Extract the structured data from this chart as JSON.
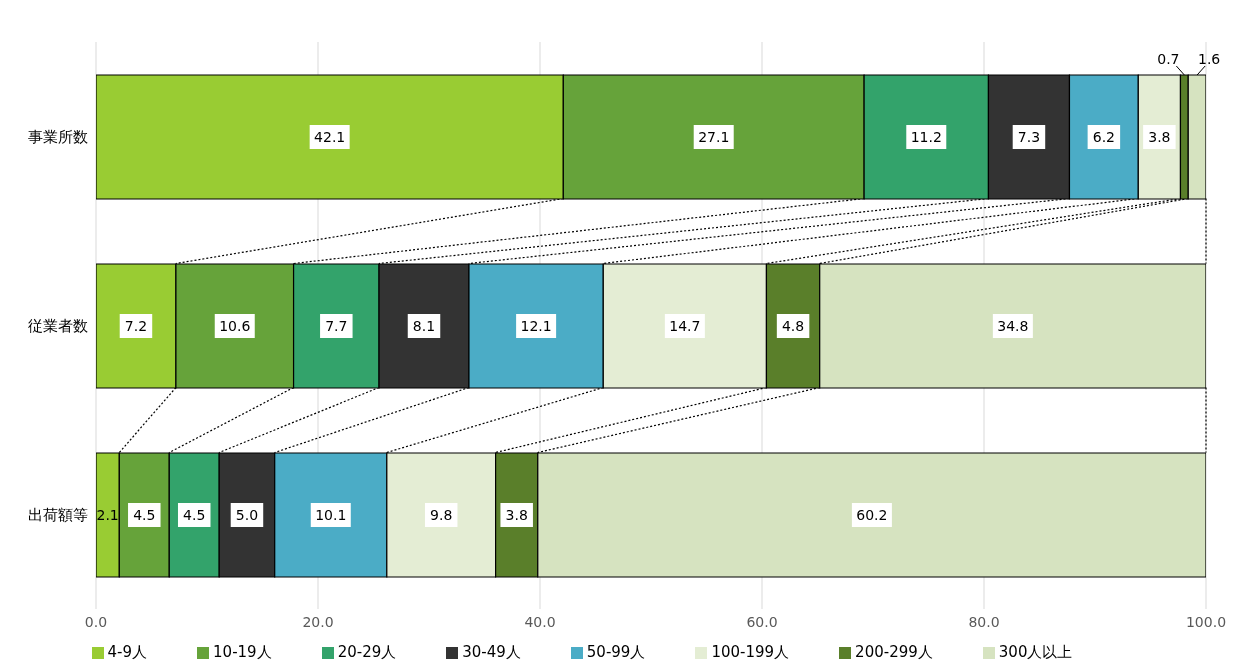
{
  "chart_data": {
    "type": "bar",
    "orientation": "horizontal",
    "stacked": true,
    "categories": [
      "事業所数",
      "従業者数",
      "出荷額等"
    ],
    "series": [
      {
        "name": "4-9人",
        "color": "#99cc33",
        "values": [
          42.1,
          7.2,
          2.1
        ],
        "value_labels": [
          "42.1",
          "7.2",
          "2.1"
        ]
      },
      {
        "name": "10-19人",
        "color": "#66a33a",
        "values": [
          27.1,
          10.6,
          4.5
        ],
        "value_labels": [
          "27.1",
          "10.6",
          "4.5"
        ]
      },
      {
        "name": "20-29人",
        "color": "#33a36b",
        "values": [
          11.2,
          7.7,
          4.5
        ],
        "value_labels": [
          "11.2",
          "7.7",
          "4.5"
        ]
      },
      {
        "name": "30-49人",
        "color": "#333333",
        "values": [
          7.3,
          8.1,
          5.0
        ],
        "value_labels": [
          "7.3",
          "8.1",
          "5.0"
        ]
      },
      {
        "name": "50-99人",
        "color": "#4bacc6",
        "values": [
          6.2,
          12.1,
          10.1
        ],
        "value_labels": [
          "6.2",
          "12.1",
          "10.1"
        ]
      },
      {
        "name": "100-199人",
        "color": "#e4edd4",
        "values": [
          3.8,
          14.7,
          9.8
        ],
        "value_labels": [
          "3.8",
          "14.7",
          "9.8"
        ]
      },
      {
        "name": "200-299人",
        "color": "#5a7f2a",
        "values": [
          0.7,
          4.8,
          3.8
        ],
        "value_labels": [
          "0.7",
          "4.8",
          "3.8"
        ]
      },
      {
        "name": "300人以上",
        "color": "#d6e3c0",
        "values": [
          1.6,
          34.8,
          60.2
        ],
        "value_labels": [
          "1.6",
          "34.8",
          "60.2"
        ]
      }
    ],
    "xlim": [
      0,
      100
    ],
    "xticks": [
      {
        "value": 0,
        "label": "0.0"
      },
      {
        "value": 20,
        "label": "20.0"
      },
      {
        "value": 40,
        "label": "40.0"
      },
      {
        "value": 60,
        "label": "60.0"
      },
      {
        "value": 80,
        "label": "80.0"
      },
      {
        "value": 100,
        "label": "100.0"
      }
    ],
    "grid": "x",
    "legend": "bottom"
  }
}
